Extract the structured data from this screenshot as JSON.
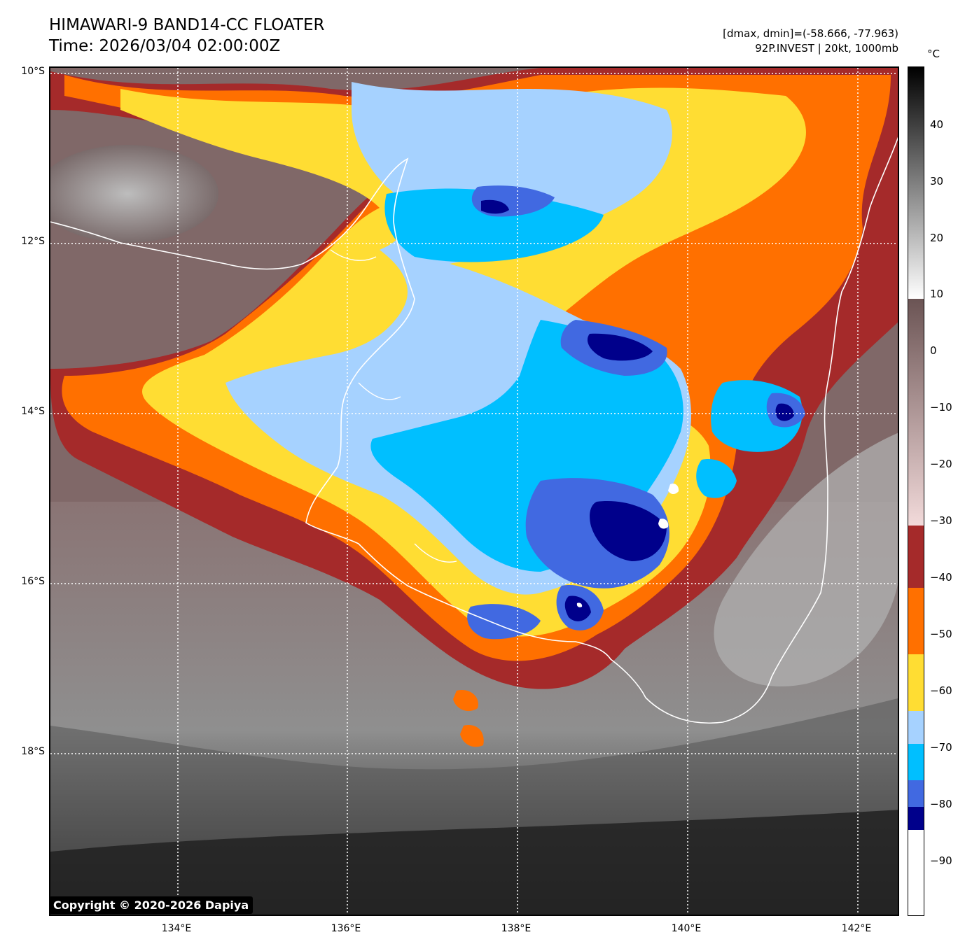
{
  "header": {
    "title_line1": "HIMAWARI-9 BAND14-CC FLOATER",
    "title_line2": "Time: 2026/03/04 02:00:00Z",
    "stats_line": "[dmax, dmin]=(-58.666, -77.963)",
    "storm_line": "92P.INVEST | 20kt, 1000mb"
  },
  "map": {
    "lat_ticks": [
      "10°S",
      "12°S",
      "14°S",
      "16°S",
      "18°S"
    ],
    "lon_ticks": [
      "134°E",
      "136°E",
      "138°E",
      "140°E",
      "142°E"
    ],
    "lat_range": [
      -10,
      -19.8
    ],
    "lon_range": [
      132.5,
      142.5
    ],
    "grid": "dotted white"
  },
  "copyright": "Copyright © 2020-2026 Dapiya",
  "colorbar": {
    "unit": "°C",
    "range": [
      -100,
      50
    ],
    "labels": [
      "40",
      "30",
      "20",
      "10",
      "0",
      "−10",
      "−20",
      "−30",
      "−40",
      "−50",
      "−60",
      "−70",
      "−80",
      "−90"
    ],
    "label_values": [
      40,
      30,
      20,
      10,
      0,
      -10,
      -20,
      -30,
      -40,
      -50,
      -60,
      -70,
      -80,
      -90
    ],
    "colors": {
      "dark_blue": "#00008b",
      "royal_blue": "#4169e1",
      "deep_sky": "#00bfff",
      "light_blue": "#a6d2ff",
      "yellow": "#ffdd33",
      "orange": "#ff7000",
      "brick": "#a52a2a",
      "warm_top": "#f2dada",
      "warm_bottom": "#6b5454"
    }
  }
}
